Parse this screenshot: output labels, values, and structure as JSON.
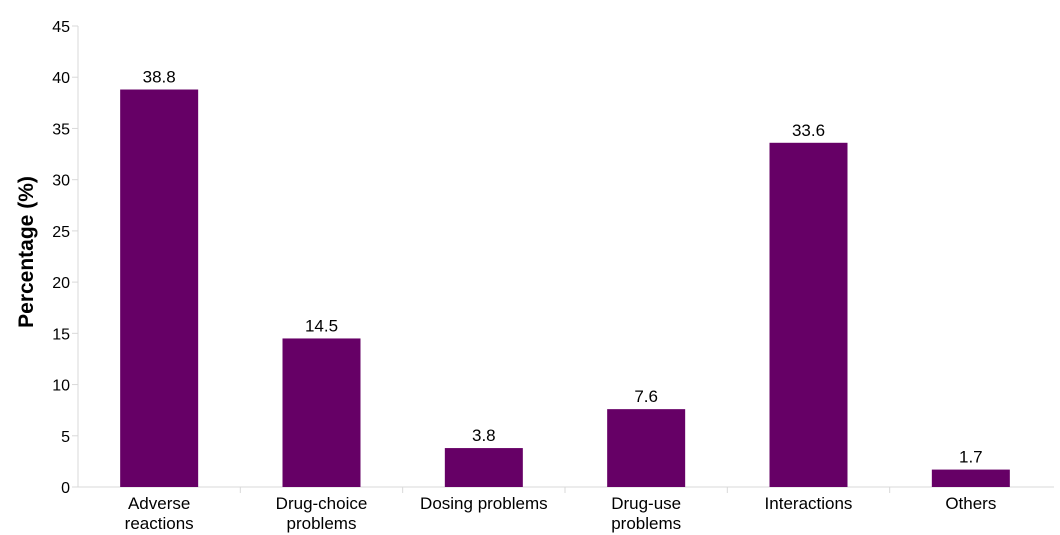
{
  "chart_data": {
    "type": "bar",
    "categories": [
      [
        "Adverse",
        "reactions"
      ],
      [
        "Drug-choice",
        "problems"
      ],
      [
        "Dosing problems"
      ],
      [
        "Drug-use",
        "problems"
      ],
      [
        "Interactions"
      ],
      [
        "Others"
      ]
    ],
    "values": [
      38.8,
      14.5,
      3.8,
      7.6,
      33.6,
      1.7
    ],
    "value_labels": [
      "38.8",
      "14.5",
      "3.8",
      "7.6",
      "33.6",
      "1.7"
    ],
    "ylabel": "Percentage (%)",
    "xlabel": "",
    "ylim": [
      0,
      45
    ],
    "yticks": [
      0,
      5,
      10,
      15,
      20,
      25,
      30,
      35,
      40,
      45
    ],
    "grid": false,
    "bar_color": "#660066",
    "axis_color": "#d9d9d9"
  }
}
